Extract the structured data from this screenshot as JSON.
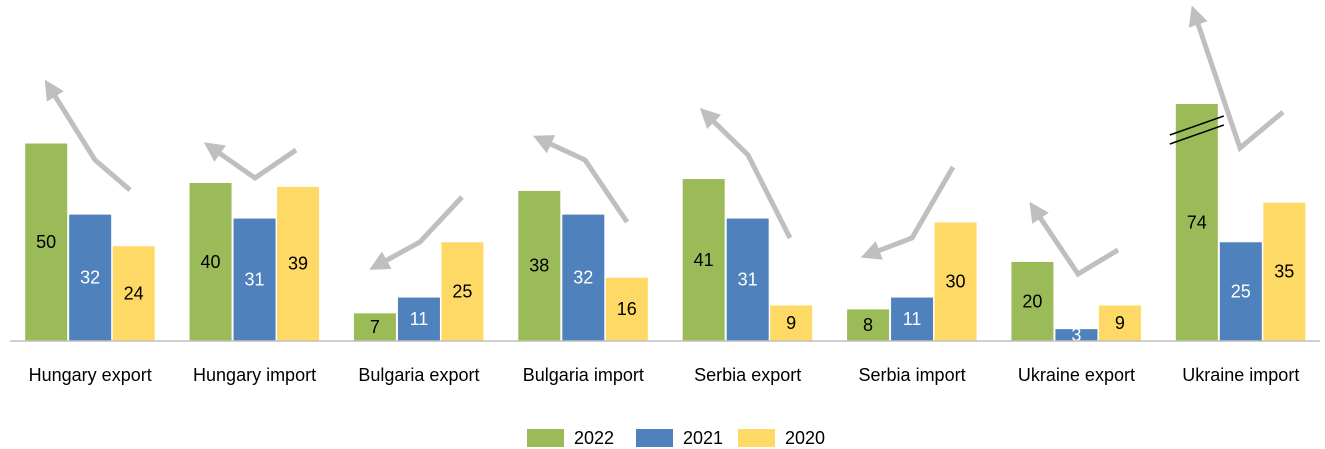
{
  "chart_data": {
    "type": "bar",
    "categories": [
      "Hungary export",
      "Hungary import",
      "Bulgaria export",
      "Bulgaria import",
      "Serbia export",
      "Serbia import",
      "Ukraine export",
      "Ukraine import"
    ],
    "series": [
      {
        "name": "2022",
        "color": "#9bbb59",
        "values": [
          50,
          40,
          7,
          38,
          41,
          8,
          20,
          74
        ]
      },
      {
        "name": "2021",
        "color": "#4f81bd",
        "values": [
          32,
          31,
          11,
          32,
          31,
          11,
          3,
          25
        ]
      },
      {
        "name": "2020",
        "color": "#ffd966",
        "values": [
          24,
          39,
          25,
          16,
          9,
          30,
          9,
          35
        ]
      }
    ],
    "ylim": [
      0,
      60
    ],
    "axis_break": true,
    "legend": "bottom"
  }
}
